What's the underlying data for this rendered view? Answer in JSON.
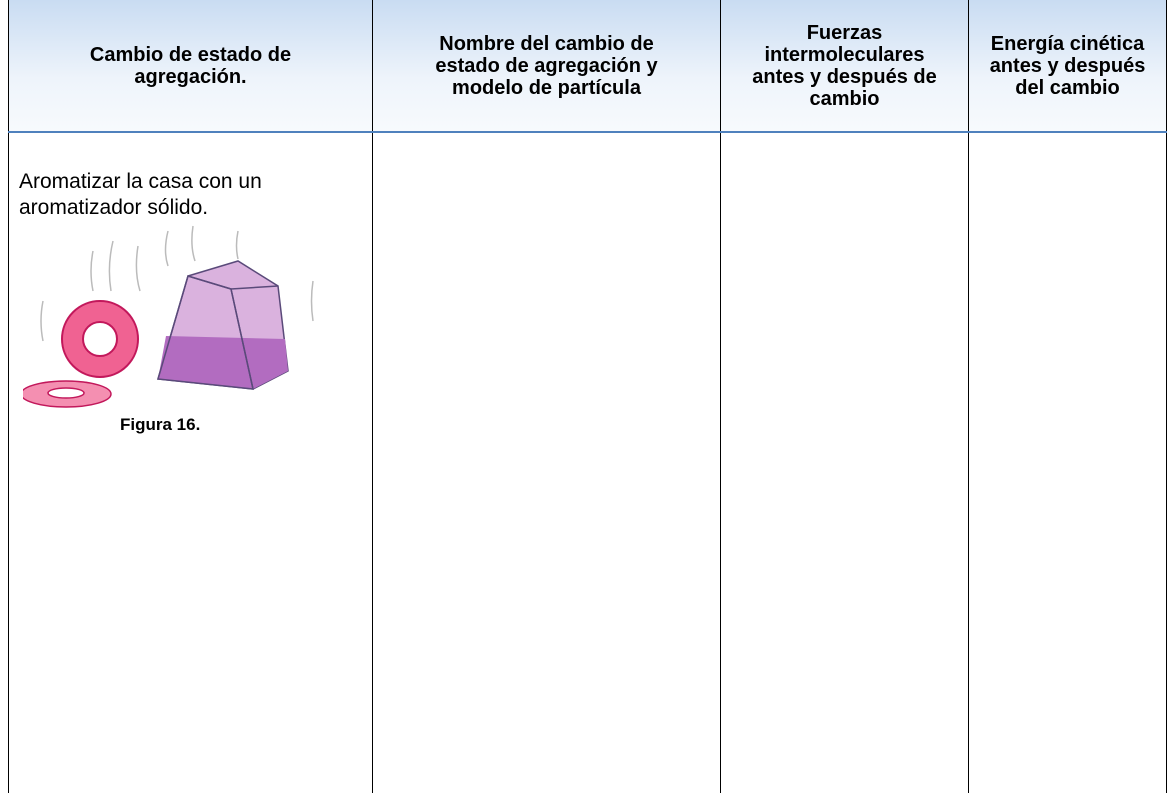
{
  "table": {
    "header": [
      "Cambio de estado de agregación.",
      "Nombre del cambio de estado de agregación y modelo de partícula",
      "Fuerzas intermoleculares antes y después de cambio",
      "Energía cinética antes y después del cambio"
    ],
    "rows": [
      {
        "description": "Aromatizar la casa con un aromatizador sólido.",
        "figure_caption": "Figura 16."
      }
    ]
  }
}
